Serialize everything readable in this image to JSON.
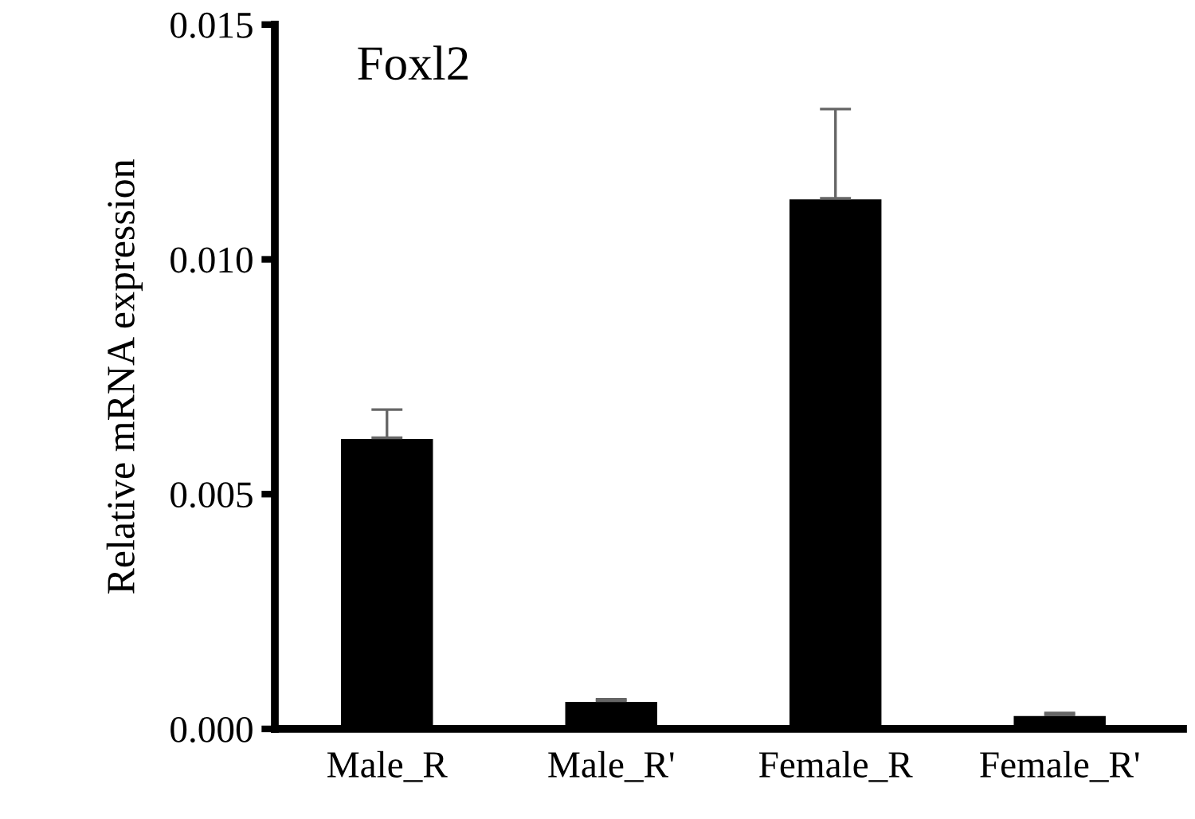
{
  "chart_data": {
    "type": "bar",
    "title": "Foxl2",
    "ylabel": "Relative mRNA expression",
    "categories": [
      "Male_R",
      "Male_R'",
      "Female_R",
      "Female_R'"
    ],
    "values": [
      0.0062,
      0.0006,
      0.0113,
      0.0003
    ],
    "errors": [
      [
        0.0062,
        0.0068
      ],
      [
        0.0006,
        0.00063
      ],
      [
        0.0113,
        0.0132
      ],
      [
        0.0003,
        0.00034
      ]
    ],
    "color": "#000000",
    "ylim": [
      0,
      0.015
    ],
    "yticks": [
      {
        "value": 0,
        "label": "0.000"
      },
      {
        "value": 0.005,
        "label": "0.005"
      },
      {
        "value": 0.01,
        "label": "0.010"
      },
      {
        "value": 0.015,
        "label": "0.015"
      }
    ],
    "grid": false
  }
}
